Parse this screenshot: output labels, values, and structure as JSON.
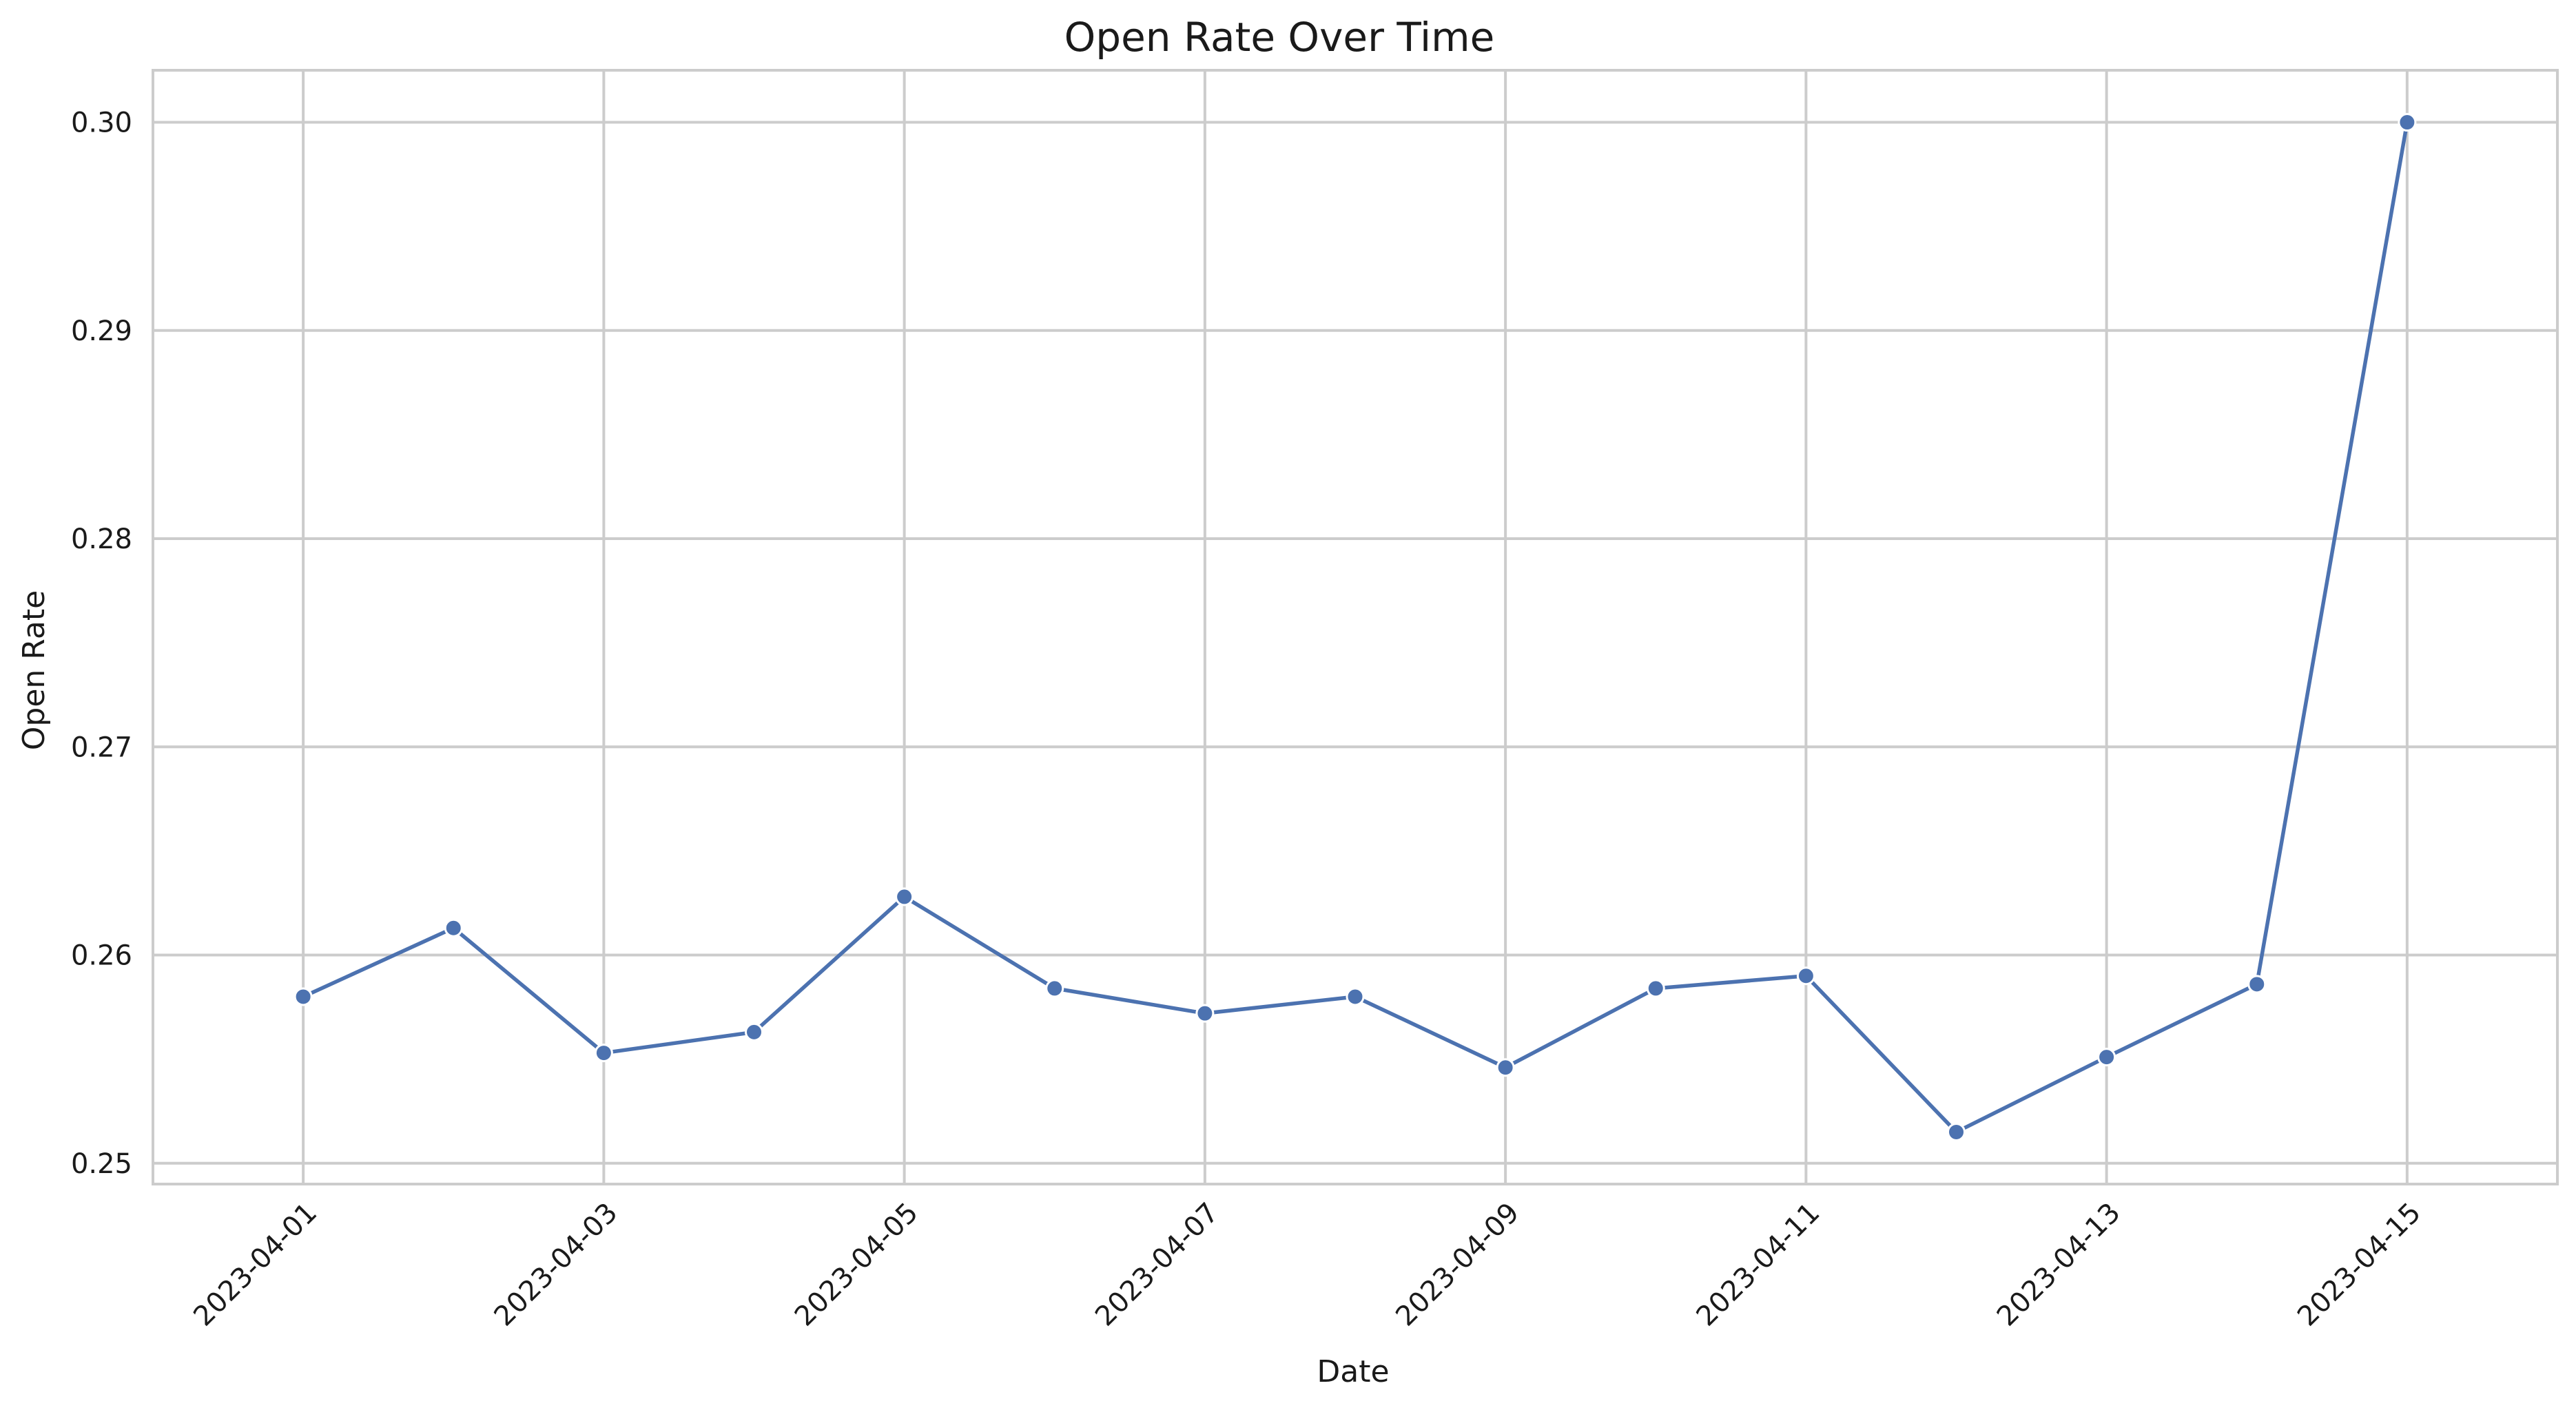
{
  "chart_data": {
    "type": "line",
    "title": "Open Rate Over Time",
    "xlabel": "Date",
    "ylabel": "Open Rate",
    "x": [
      "2023-04-01",
      "2023-04-02",
      "2023-04-03",
      "2023-04-04",
      "2023-04-05",
      "2023-04-06",
      "2023-04-07",
      "2023-04-08",
      "2023-04-09",
      "2023-04-10",
      "2023-04-11",
      "2023-04-12",
      "2023-04-13",
      "2023-04-14",
      "2023-04-15"
    ],
    "series": [
      {
        "values": [
          0.258,
          0.2613,
          0.2553,
          0.2563,
          0.2628,
          0.2584,
          0.2572,
          0.258,
          0.2546,
          0.2584,
          0.259,
          0.2515,
          0.2551,
          0.2586,
          0.3
        ],
        "color": "#4c72b0"
      }
    ],
    "xticks": [
      "2023-04-01",
      "2023-04-03",
      "2023-04-05",
      "2023-04-07",
      "2023-04-09",
      "2023-04-11",
      "2023-04-13",
      "2023-04-15"
    ],
    "yticks": [
      "0.25",
      "0.26",
      "0.27",
      "0.28",
      "0.29",
      "0.30"
    ],
    "xlim": [
      "2023-03-31",
      "2023-04-16"
    ],
    "ylim": [
      0.249,
      0.3025
    ],
    "grid": true,
    "legend": "none"
  }
}
